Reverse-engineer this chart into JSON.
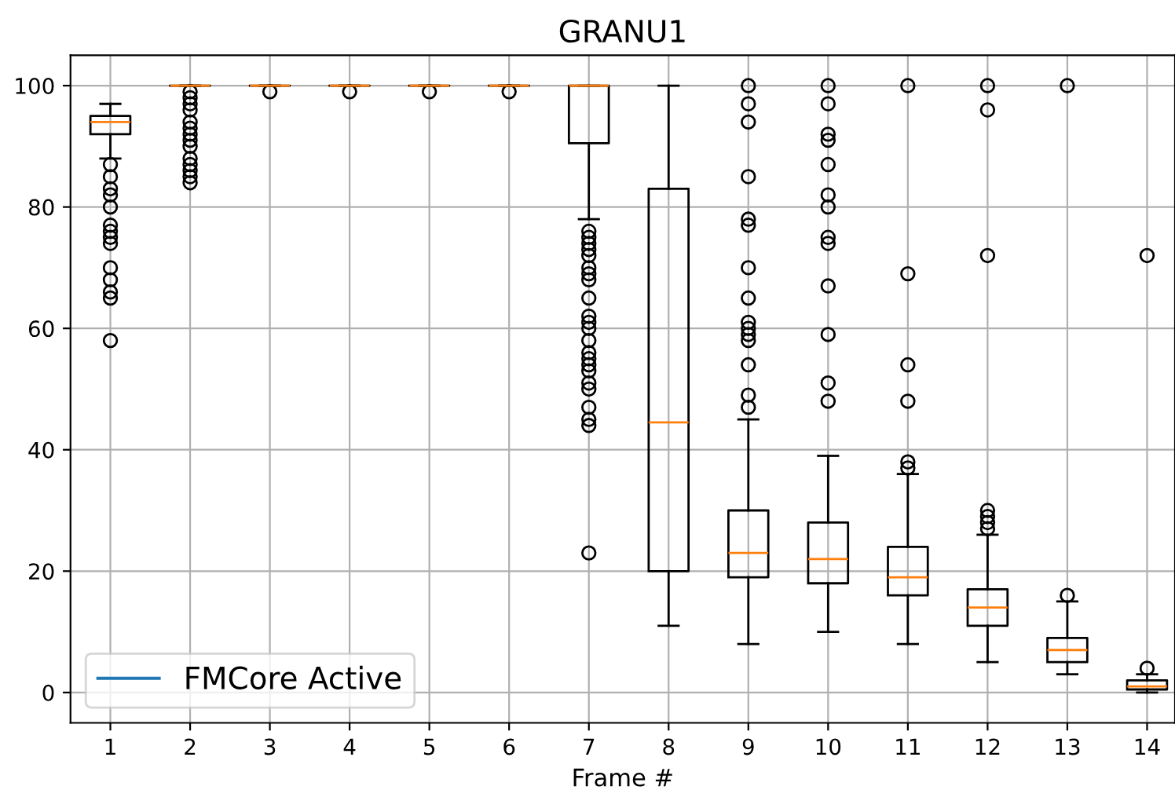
{
  "chart_data": {
    "type": "box",
    "title": "GRANU1",
    "xlabel": "Frame #",
    "categories": [
      "1",
      "2",
      "3",
      "4",
      "5",
      "6",
      "7",
      "8",
      "9",
      "10",
      "11",
      "12",
      "13",
      "14"
    ],
    "ylim": [
      -5,
      105
    ],
    "yticks": [
      0,
      20,
      40,
      60,
      80,
      100
    ],
    "grid": true,
    "legend": "bottom left",
    "boxes": [
      {
        "low": 88,
        "q1": 92,
        "median": 94,
        "q3": 95,
        "high": 97,
        "outliers": [
          58,
          65,
          66,
          68,
          70,
          74,
          75,
          76,
          77,
          80,
          82,
          83,
          85,
          87
        ]
      },
      {
        "low": 100,
        "q1": 100,
        "median": 100,
        "q3": 100,
        "high": 100,
        "outliers": [
          84,
          85,
          86,
          87,
          88,
          90,
          91,
          92,
          93,
          94,
          96,
          97,
          98,
          99
        ]
      },
      {
        "low": 100,
        "q1": 100,
        "median": 100,
        "q3": 100,
        "high": 100,
        "outliers": [
          99
        ]
      },
      {
        "low": 100,
        "q1": 100,
        "median": 100,
        "q3": 100,
        "high": 100,
        "outliers": [
          99
        ]
      },
      {
        "low": 100,
        "q1": 100,
        "median": 100,
        "q3": 100,
        "high": 100,
        "outliers": [
          99
        ]
      },
      {
        "low": 100,
        "q1": 100,
        "median": 100,
        "q3": 100,
        "high": 100,
        "outliers": [
          99
        ]
      },
      {
        "low": 78,
        "q1": 90.5,
        "median": 100,
        "q3": 100,
        "high": 100,
        "outliers": [
          23,
          44,
          45,
          47,
          50,
          51,
          53,
          54,
          55,
          56,
          58,
          60,
          61,
          62,
          65,
          68,
          69,
          70,
          72,
          73,
          74,
          75,
          76
        ]
      },
      {
        "low": 11,
        "q1": 20,
        "median": 44.5,
        "q3": 83,
        "high": 100
      },
      {
        "low": 8,
        "q1": 19,
        "median": 23,
        "q3": 30,
        "high": 45,
        "outliers": [
          47,
          49,
          54,
          58,
          59,
          60,
          61,
          65,
          70,
          77,
          78,
          85,
          94,
          97,
          100
        ]
      },
      {
        "low": 10,
        "q1": 18,
        "median": 22,
        "q3": 28,
        "high": 39,
        "outliers": [
          48,
          51,
          59,
          67,
          74,
          75,
          80,
          82,
          87,
          91,
          92,
          97,
          100
        ]
      },
      {
        "low": 8,
        "q1": 16,
        "median": 19,
        "q3": 24,
        "high": 36,
        "outliers": [
          37,
          38,
          48,
          54,
          69,
          100
        ]
      },
      {
        "low": 5,
        "q1": 11,
        "median": 14,
        "q3": 17,
        "high": 26,
        "outliers": [
          27,
          28,
          29,
          30,
          72,
          96,
          100
        ]
      },
      {
        "low": 3,
        "q1": 5,
        "median": 7,
        "q3": 9,
        "high": 15,
        "outliers": [
          16,
          100
        ]
      },
      {
        "low": 0,
        "q1": 0.5,
        "median": 1,
        "q3": 2,
        "high": 3,
        "outliers": [
          4,
          72
        ]
      }
    ],
    "series": [
      {
        "name": "FMCore Active",
        "type": "line",
        "color": "#1f77b4",
        "values": [
          null,
          null,
          null,
          null,
          null,
          null,
          null,
          null,
          null,
          null,
          null,
          null,
          null,
          null
        ]
      }
    ]
  }
}
